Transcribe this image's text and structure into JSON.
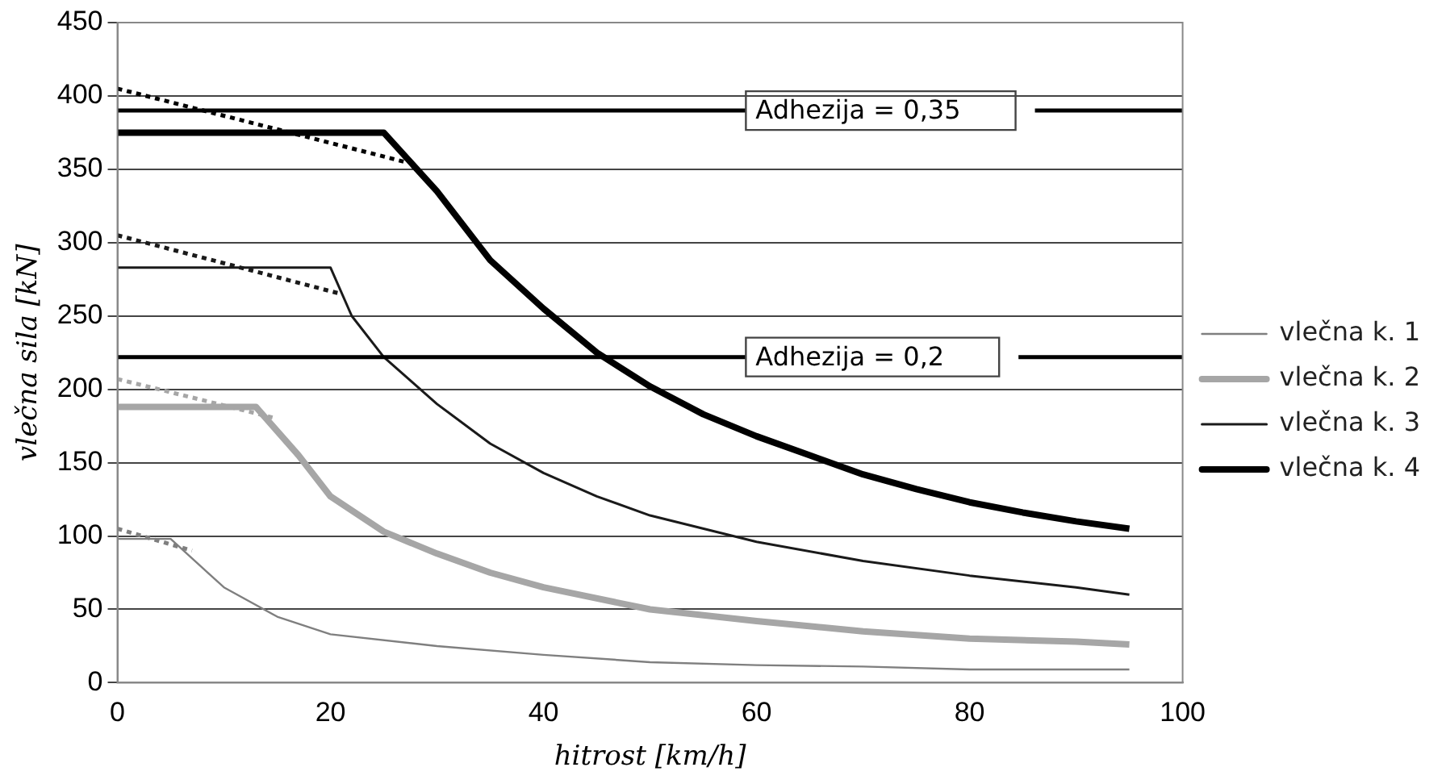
{
  "chart_data": {
    "type": "line",
    "xlabel": "hitrost [km/h]",
    "ylabel": "vlečna sila [kN]",
    "xlim": [
      0,
      100
    ],
    "xticks": [
      0,
      20,
      40,
      60,
      80,
      100
    ],
    "ylim": [
      0,
      450
    ],
    "yticks": [
      0,
      50,
      100,
      150,
      200,
      250,
      300,
      350,
      400,
      450
    ],
    "grid": "y",
    "legend": "right",
    "marker": "none",
    "series": [
      {
        "name": "vlečna k. 1",
        "color": "#7f7f7f",
        "x": [
          0,
          5,
          10,
          15,
          20,
          30,
          40,
          50,
          60,
          70,
          80,
          90,
          95
        ],
        "values": [
          98,
          98,
          65,
          45,
          33,
          25,
          19,
          14,
          12,
          11,
          9,
          9,
          9
        ]
      },
      {
        "name": "vlečna k. 2",
        "color": "#a6a6a6",
        "x": [
          0,
          13,
          17,
          20,
          25,
          30,
          35,
          40,
          50,
          60,
          70,
          80,
          90,
          95
        ],
        "values": [
          188,
          188,
          155,
          127,
          103,
          88,
          75,
          65,
          50,
          42,
          35,
          30,
          28,
          26
        ]
      },
      {
        "name": "vlečna k. 3",
        "color": "#1a1a1a",
        "x": [
          0,
          20,
          22,
          25,
          30,
          35,
          40,
          45,
          50,
          60,
          70,
          80,
          90,
          95
        ],
        "values": [
          283,
          283,
          250,
          222,
          190,
          163,
          143,
          127,
          114,
          96,
          83,
          73,
          65,
          60
        ]
      },
      {
        "name": "vlečna k. 4",
        "color": "#000000",
        "x": [
          0,
          25,
          30,
          35,
          40,
          45,
          50,
          55,
          60,
          65,
          70,
          75,
          80,
          85,
          90,
          95
        ],
        "values": [
          375,
          375,
          335,
          288,
          255,
          225,
          202,
          183,
          168,
          155,
          142,
          132,
          123,
          116,
          110,
          105
        ]
      },
      {
        "color": "#7f7f7f",
        "line_style": "dotted",
        "x": [
          0,
          7
        ],
        "values": [
          105,
          90
        ]
      },
      {
        "color": "#a6a6a6",
        "line_style": "dotted",
        "x": [
          0,
          15
        ],
        "values": [
          207,
          180
        ]
      },
      {
        "color": "#1a1a1a",
        "line_style": "dotted",
        "x": [
          0,
          21
        ],
        "values": [
          305,
          265
        ]
      },
      {
        "color": "#000000",
        "line_style": "dotted",
        "x": [
          0,
          27
        ],
        "values": [
          405,
          355
        ]
      }
    ],
    "ref_lines": [
      {
        "axis": "y",
        "value": 390,
        "color": "#000000"
      },
      {
        "axis": "y",
        "value": 222,
        "color": "#000000"
      }
    ],
    "annotations": [
      "Adhezija = 0,35",
      "Adhezija = 0,2"
    ]
  }
}
